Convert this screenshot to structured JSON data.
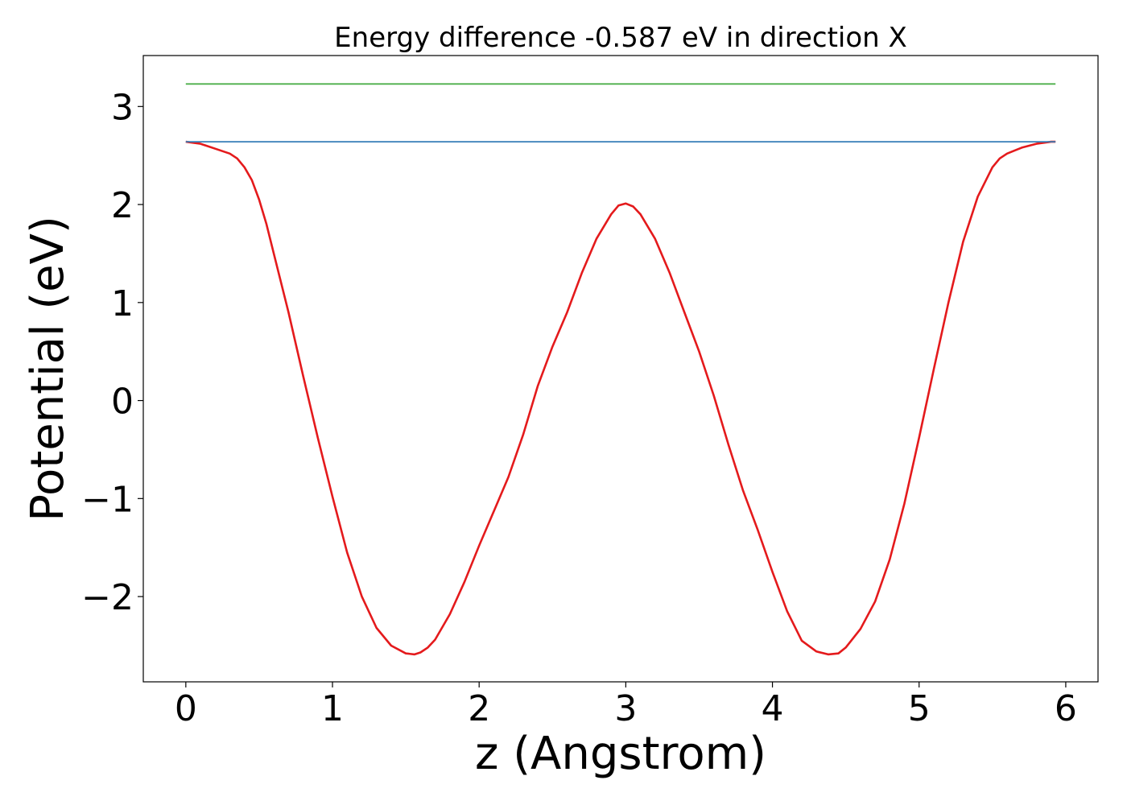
{
  "chart_data": {
    "type": "line",
    "title": "Energy difference -0.587 eV in direction X",
    "xlabel": "z (Angstrom)",
    "ylabel": "Potential (eV)",
    "xlim": [
      -0.29,
      6.22
    ],
    "ylim": [
      -2.87,
      3.52
    ],
    "xticks": [
      0,
      1,
      2,
      3,
      4,
      5,
      6
    ],
    "xtick_labels": [
      "0",
      "1",
      "2",
      "3",
      "4",
      "5",
      "6"
    ],
    "yticks": [
      -2,
      -1,
      0,
      1,
      2,
      3
    ],
    "ytick_labels": [
      "−2",
      "−1",
      "0",
      "1",
      "2",
      "3"
    ],
    "grid": false,
    "legend": "none",
    "series": [
      {
        "color": "#e41a1c",
        "x": [
          0.0,
          0.1,
          0.2,
          0.3,
          0.35,
          0.4,
          0.45,
          0.5,
          0.55,
          0.6,
          0.7,
          0.8,
          0.9,
          1.0,
          1.1,
          1.2,
          1.3,
          1.4,
          1.5,
          1.56,
          1.6,
          1.65,
          1.7,
          1.8,
          1.9,
          2.0,
          2.1,
          2.2,
          2.3,
          2.4,
          2.5,
          2.6,
          2.7,
          2.8,
          2.9,
          2.95,
          3.0,
          3.05,
          3.1,
          3.2,
          3.3,
          3.4,
          3.5,
          3.6,
          3.7,
          3.8,
          3.9,
          4.0,
          4.1,
          4.2,
          4.3,
          4.38,
          4.45,
          4.5,
          4.6,
          4.7,
          4.8,
          4.9,
          5.0,
          5.1,
          5.2,
          5.3,
          5.4,
          5.5,
          5.55,
          5.6,
          5.65,
          5.7,
          5.8,
          5.9,
          5.93
        ],
        "y": [
          2.64,
          2.62,
          2.57,
          2.52,
          2.47,
          2.38,
          2.25,
          2.05,
          1.8,
          1.5,
          0.9,
          0.25,
          -0.38,
          -0.98,
          -1.55,
          -2.0,
          -2.32,
          -2.5,
          -2.58,
          -2.59,
          -2.57,
          -2.52,
          -2.44,
          -2.18,
          -1.85,
          -1.48,
          -1.13,
          -0.78,
          -0.35,
          0.15,
          0.55,
          0.9,
          1.3,
          1.65,
          1.9,
          1.99,
          2.01,
          1.98,
          1.9,
          1.65,
          1.3,
          0.9,
          0.5,
          0.05,
          -0.45,
          -0.92,
          -1.32,
          -1.75,
          -2.15,
          -2.45,
          -2.56,
          -2.59,
          -2.58,
          -2.52,
          -2.33,
          -2.05,
          -1.62,
          -1.05,
          -0.38,
          0.32,
          1.0,
          1.62,
          2.08,
          2.38,
          2.47,
          2.52,
          2.55,
          2.58,
          2.62,
          2.64,
          2.64
        ]
      },
      {
        "color": "#377eb8",
        "x": [
          0.0,
          5.93
        ],
        "y": [
          2.64,
          2.64
        ]
      },
      {
        "color": "#4daf4a",
        "x": [
          0.0,
          5.93
        ],
        "y": [
          3.23,
          3.23
        ]
      }
    ]
  }
}
